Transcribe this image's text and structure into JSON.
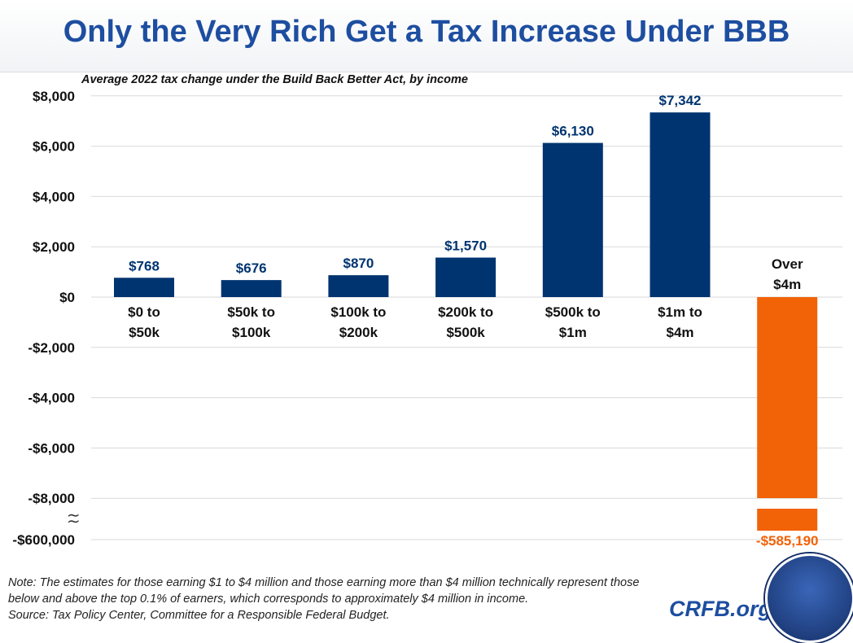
{
  "header": {
    "title": "Only the Very Rich Get a Tax Increase Under BBB"
  },
  "chart_data": {
    "type": "bar",
    "title": "Only the Very Rich Get a Tax Increase Under BBB",
    "subtitle": "Average 2022 tax change under the Build Back Better Act, by income",
    "categories": [
      "$0 to $50k",
      "$50k to $100k",
      "$100k to $200k",
      "$200k to $500k",
      "$500k to $1m",
      "$1m to $4m",
      "Over $4m"
    ],
    "category_lines": [
      [
        "$0 to",
        "$50k"
      ],
      [
        "$50k to",
        "$100k"
      ],
      [
        "$100k to",
        "$200k"
      ],
      [
        "$200k to",
        "$500k"
      ],
      [
        "$500k to",
        "$1m"
      ],
      [
        "$1m to",
        "$4m"
      ],
      [
        "Over",
        "$4m"
      ]
    ],
    "values": [
      768,
      676,
      870,
      1570,
      6130,
      7342,
      -585190
    ],
    "data_labels": [
      "$768",
      "$676",
      "$870",
      "$1,570",
      "$6,130",
      "$7,342",
      "-$585,190"
    ],
    "y_ticks": [
      8000,
      6000,
      4000,
      2000,
      0,
      -2000,
      -4000,
      -6000,
      -8000,
      -600000
    ],
    "y_tick_labels": [
      "$8,000",
      "$6,000",
      "$4,000",
      "$2,000",
      "$0",
      "-$2,000",
      "-$4,000",
      "-$6,000",
      "-$8,000",
      "-$600,000"
    ],
    "axis_break": "between -$8,000 and -$600,000",
    "ylim": [
      -600000,
      8000
    ],
    "grid": true,
    "colors": {
      "positive": "#003470",
      "negative": "#f26207",
      "positive_label": "#003470",
      "negative_label": "#f26207"
    }
  },
  "footer": {
    "note": "Note: The estimates for those earning $1 to $4 million and those earning more than $4 million technically represent those below and above the top 0.1% of earners, which corresponds to approximately $4 million in income.",
    "source": "Source: Tax Policy Center, Committee for a Responsible Federal Budget.",
    "brand": "CRFB.org"
  }
}
